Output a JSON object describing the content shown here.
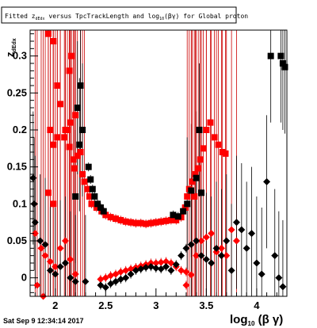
{
  "title": {
    "prefix": "Fitted z",
    "sub1": "dEdx",
    "middle": " versus TpcTrackLength and log",
    "sub2": "10",
    "suffix": "(βγ) for Global proton"
  },
  "timestamp": "Sat Sep  9 12:34:14 2017",
  "colors": {
    "frame": "#000000",
    "red": "#ff0000",
    "black": "#000000",
    "errorbar_red": "#cc0000"
  },
  "chart_data": {
    "type": "scatter",
    "xlabel_main": "log",
    "xlabel_sub": "10",
    "xlabel_tail": " (β γ)",
    "ylabel_main": "z",
    "ylabel_sub": "dEdx",
    "xlim": [
      1.75,
      4.3
    ],
    "ylim": [
      -0.025,
      0.335
    ],
    "xticks": [
      {
        "v": 2,
        "label": "2"
      },
      {
        "v": 2.5,
        "label": "2.5"
      },
      {
        "v": 3,
        "label": "3"
      },
      {
        "v": 3.5,
        "label": "3.5"
      },
      {
        "v": 4,
        "label": "4"
      }
    ],
    "yticks": [
      {
        "v": 0,
        "label": "0"
      },
      {
        "v": 0.05,
        "label": "0.05"
      },
      {
        "v": 0.1,
        "label": "0.1"
      },
      {
        "v": 0.15,
        "label": "0.15"
      },
      {
        "v": 0.2,
        "label": "0.2"
      },
      {
        "v": 0.25,
        "label": "0.25"
      },
      {
        "v": 0.3,
        "label": "0.3"
      }
    ],
    "series": [
      {
        "marker": "square",
        "color": "#ff0000",
        "points": [
          {
            "x": 1.93,
            "y": 0.33
          },
          {
            "x": 1.98,
            "y": 0.32
          },
          {
            "x": 2.14,
            "y": 0.28
          },
          {
            "x": 2.16,
            "y": 0.3
          },
          {
            "x": 2.02,
            "y": 0.26
          },
          {
            "x": 2.05,
            "y": 0.235
          },
          {
            "x": 2.1,
            "y": 0.2
          },
          {
            "x": 1.95,
            "y": 0.2
          },
          {
            "x": 1.98,
            "y": 0.18
          },
          {
            "x": 2.12,
            "y": 0.2
          },
          {
            "x": 2.15,
            "y": 0.21
          },
          {
            "x": 2.18,
            "y": 0.16
          },
          {
            "x": 2.2,
            "y": 0.22
          },
          {
            "x": 1.93,
            "y": 0.115
          },
          {
            "x": 1.98,
            "y": 0.1
          },
          {
            "x": 2.02,
            "y": 0.19
          },
          {
            "x": 2.09,
            "y": 0.19
          },
          {
            "x": 2.14,
            "y": 0.177
          },
          {
            "x": 2.22,
            "y": 0.165
          },
          {
            "x": 2.25,
            "y": 0.17
          },
          {
            "x": 2.19,
            "y": 0.148
          },
          {
            "x": 2.27,
            "y": 0.14
          },
          {
            "x": 2.29,
            "y": 0.13
          },
          {
            "x": 2.32,
            "y": 0.12
          },
          {
            "x": 2.34,
            "y": 0.11
          },
          {
            "x": 2.36,
            "y": 0.1
          },
          {
            "x": 2.41,
            "y": 0.095
          },
          {
            "x": 2.46,
            "y": 0.09
          },
          {
            "x": 2.5,
            "y": 0.085
          },
          {
            "x": 2.55,
            "y": 0.082
          },
          {
            "x": 2.6,
            "y": 0.08
          },
          {
            "x": 2.65,
            "y": 0.078
          },
          {
            "x": 2.7,
            "y": 0.076
          },
          {
            "x": 2.75,
            "y": 0.075
          },
          {
            "x": 2.8,
            "y": 0.074
          },
          {
            "x": 2.85,
            "y": 0.074
          },
          {
            "x": 2.9,
            "y": 0.073
          },
          {
            "x": 2.95,
            "y": 0.074
          },
          {
            "x": 3.0,
            "y": 0.075
          },
          {
            "x": 3.05,
            "y": 0.076
          },
          {
            "x": 3.1,
            "y": 0.077
          },
          {
            "x": 3.15,
            "y": 0.078
          },
          {
            "x": 3.2,
            "y": 0.078
          },
          {
            "x": 3.25,
            "y": 0.082
          },
          {
            "x": 3.29,
            "y": 0.095
          },
          {
            "x": 3.31,
            "y": 0.11
          },
          {
            "x": 3.33,
            "y": 0.12
          },
          {
            "x": 3.36,
            "y": 0.13
          },
          {
            "x": 3.39,
            "y": 0.14
          },
          {
            "x": 3.42,
            "y": 0.148
          },
          {
            "x": 3.44,
            "y": 0.16
          },
          {
            "x": 3.47,
            "y": 0.175
          },
          {
            "x": 3.5,
            "y": 0.2
          },
          {
            "x": 3.54,
            "y": 0.21
          },
          {
            "x": 3.58,
            "y": 0.19
          },
          {
            "x": 3.62,
            "y": 0.18
          },
          {
            "x": 3.66,
            "y": 0.17
          },
          {
            "x": 3.69,
            "y": 0.168
          },
          {
            "x": 3.38,
            "y": 0.11
          }
        ]
      },
      {
        "marker": "square",
        "color": "#000000",
        "points": [
          {
            "x": 4.14,
            "y": 0.3
          },
          {
            "x": 4.24,
            "y": 0.3
          },
          {
            "x": 4.26,
            "y": 0.29
          },
          {
            "x": 4.28,
            "y": 0.285
          },
          {
            "x": 2.25,
            "y": 0.26
          },
          {
            "x": 2.22,
            "y": 0.23
          },
          {
            "x": 2.27,
            "y": 0.2
          },
          {
            "x": 2.24,
            "y": 0.18
          },
          {
            "x": 2.33,
            "y": 0.15
          },
          {
            "x": 2.35,
            "y": 0.133
          },
          {
            "x": 2.37,
            "y": 0.12
          },
          {
            "x": 2.39,
            "y": 0.11
          },
          {
            "x": 2.42,
            "y": 0.1
          },
          {
            "x": 2.45,
            "y": 0.095
          },
          {
            "x": 2.48,
            "y": 0.09
          },
          {
            "x": 3.17,
            "y": 0.085
          },
          {
            "x": 3.22,
            "y": 0.083
          },
          {
            "x": 3.27,
            "y": 0.09
          },
          {
            "x": 3.31,
            "y": 0.1
          },
          {
            "x": 3.35,
            "y": 0.118
          },
          {
            "x": 3.4,
            "y": 0.135
          },
          {
            "x": 3.43,
            "y": 0.2
          },
          {
            "x": 2.2,
            "y": 0.11
          },
          {
            "x": 3.45,
            "y": 0.115
          }
        ]
      },
      {
        "marker": "diamond",
        "color": "#ff0000",
        "points": [
          {
            "x": 1.8,
            "y": 0.06
          },
          {
            "x": 1.86,
            "y": 0.04
          },
          {
            "x": 1.9,
            "y": 0.03
          },
          {
            "x": 1.95,
            "y": 0.022
          },
          {
            "x": 2.0,
            "y": 0.015
          },
          {
            "x": 2.05,
            "y": 0.04
          },
          {
            "x": 2.1,
            "y": 0.05
          },
          {
            "x": 2.15,
            "y": 0.025
          },
          {
            "x": 2.2,
            "y": 0.005
          },
          {
            "x": 1.82,
            "y": -0.01
          },
          {
            "x": 1.88,
            "y": -0.025
          },
          {
            "x": 2.45,
            "y": -0.002
          },
          {
            "x": 2.5,
            "y": 0.0
          },
          {
            "x": 2.55,
            "y": 0.003
          },
          {
            "x": 2.6,
            "y": 0.005
          },
          {
            "x": 2.65,
            "y": 0.008
          },
          {
            "x": 2.7,
            "y": 0.01
          },
          {
            "x": 2.75,
            "y": 0.012
          },
          {
            "x": 2.8,
            "y": 0.014
          },
          {
            "x": 2.85,
            "y": 0.016
          },
          {
            "x": 2.9,
            "y": 0.018
          },
          {
            "x": 2.95,
            "y": 0.02
          },
          {
            "x": 3.0,
            "y": 0.02
          },
          {
            "x": 3.05,
            "y": 0.021
          },
          {
            "x": 3.1,
            "y": 0.022
          },
          {
            "x": 3.15,
            "y": 0.02
          },
          {
            "x": 3.2,
            "y": 0.015
          },
          {
            "x": 3.25,
            "y": 0.01
          },
          {
            "x": 3.3,
            "y": 0.008
          },
          {
            "x": 3.35,
            "y": 0.004
          },
          {
            "x": 3.4,
            "y": 0.03
          },
          {
            "x": 3.45,
            "y": 0.05
          },
          {
            "x": 3.5,
            "y": 0.055
          },
          {
            "x": 3.55,
            "y": 0.06
          },
          {
            "x": 3.6,
            "y": 0.035
          },
          {
            "x": 3.65,
            "y": 0.04
          },
          {
            "x": 3.7,
            "y": 0.03
          },
          {
            "x": 3.75,
            "y": 0.065
          },
          {
            "x": 3.8,
            "y": 0.05
          },
          {
            "x": 3.3,
            "y": -0.01
          }
        ]
      },
      {
        "marker": "diamond",
        "color": "#000000",
        "points": [
          {
            "x": 1.78,
            "y": 0.135
          },
          {
            "x": 1.79,
            "y": 0.1
          },
          {
            "x": 1.8,
            "y": 0.075
          },
          {
            "x": 1.85,
            "y": 0.05
          },
          {
            "x": 1.9,
            "y": 0.045
          },
          {
            "x": 1.95,
            "y": 0.01
          },
          {
            "x": 2.0,
            "y": 0.005
          },
          {
            "x": 2.05,
            "y": 0.015
          },
          {
            "x": 2.1,
            "y": 0.02
          },
          {
            "x": 2.15,
            "y": 0.0
          },
          {
            "x": 2.2,
            "y": -0.005
          },
          {
            "x": 2.3,
            "y": -0.005
          },
          {
            "x": 2.45,
            "y": -0.01
          },
          {
            "x": 2.5,
            "y": -0.013
          },
          {
            "x": 2.55,
            "y": -0.008
          },
          {
            "x": 2.6,
            "y": -0.005
          },
          {
            "x": 2.65,
            "y": -0.002
          },
          {
            "x": 2.7,
            "y": 0.0
          },
          {
            "x": 2.75,
            "y": 0.005
          },
          {
            "x": 2.8,
            "y": 0.01
          },
          {
            "x": 2.85,
            "y": 0.012
          },
          {
            "x": 2.9,
            "y": 0.014
          },
          {
            "x": 2.95,
            "y": 0.015
          },
          {
            "x": 3.0,
            "y": 0.013
          },
          {
            "x": 3.05,
            "y": 0.012
          },
          {
            "x": 3.1,
            "y": 0.015
          },
          {
            "x": 3.15,
            "y": 0.01
          },
          {
            "x": 3.2,
            "y": 0.018
          },
          {
            "x": 3.25,
            "y": 0.03
          },
          {
            "x": 3.3,
            "y": 0.04
          },
          {
            "x": 3.35,
            "y": 0.045
          },
          {
            "x": 3.4,
            "y": 0.05
          },
          {
            "x": 3.45,
            "y": 0.03
          },
          {
            "x": 3.5,
            "y": 0.025
          },
          {
            "x": 3.55,
            "y": 0.02
          },
          {
            "x": 3.6,
            "y": 0.04
          },
          {
            "x": 3.65,
            "y": 0.03
          },
          {
            "x": 3.7,
            "y": 0.05
          },
          {
            "x": 3.75,
            "y": 0.01
          },
          {
            "x": 3.8,
            "y": 0.075
          },
          {
            "x": 3.85,
            "y": 0.065
          },
          {
            "x": 3.9,
            "y": 0.04
          },
          {
            "x": 3.95,
            "y": 0.06
          },
          {
            "x": 4.0,
            "y": 0.02
          },
          {
            "x": 4.05,
            "y": 0.005
          },
          {
            "x": 4.1,
            "y": 0.13
          },
          {
            "x": 4.18,
            "y": 0.03
          },
          {
            "x": 4.22,
            "y": 0.0
          },
          {
            "x": 4.26,
            "y": -0.012
          }
        ]
      }
    ]
  }
}
